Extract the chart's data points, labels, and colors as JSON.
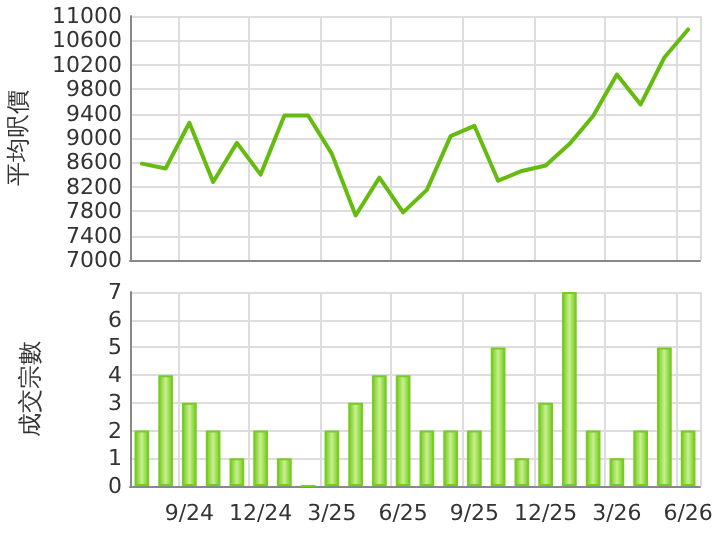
{
  "chart_data": [
    {
      "type": "line",
      "ylabel": "平均呎價",
      "categories": [
        null,
        null,
        null,
        null,
        null,
        null,
        null,
        null,
        null,
        null,
        null,
        null,
        null,
        null,
        null,
        null,
        null,
        null,
        null,
        null,
        null,
        null,
        null,
        null
      ],
      "series": [
        {
          "color": "#66bb11",
          "values": [
            8580,
            8500,
            9250,
            8280,
            8920,
            8400,
            9370,
            9370,
            8740,
            7730,
            8350,
            7780,
            8150,
            9030,
            9200,
            8300,
            8460,
            8550,
            8900,
            9360,
            10040,
            9550,
            10320,
            10780
          ]
        }
      ],
      "ylim": [
        7000,
        11000
      ],
      "yticks": [
        7000,
        7400,
        7800,
        8200,
        8600,
        9000,
        9400,
        9800,
        10200,
        10600,
        11000
      ],
      "grid": true,
      "tick_labels": "y",
      "marker": "none",
      "line_style": "solid"
    },
    {
      "type": "bar",
      "ylabel": "成交宗數",
      "categories": [
        null,
        null,
        "9/24",
        null,
        null,
        "12/24",
        null,
        null,
        "3/25",
        null,
        null,
        "6/25",
        null,
        null,
        "9/25",
        null,
        null,
        "12/25",
        null,
        null,
        "3/26",
        null,
        null,
        "6/26"
      ],
      "series": [
        {
          "color": "#77cc22",
          "values": [
            2,
            4,
            3,
            2,
            1,
            2,
            1,
            0,
            2,
            3,
            4,
            4,
            2,
            2,
            2,
            5,
            1,
            3,
            7,
            2,
            1,
            2,
            5,
            2
          ]
        }
      ],
      "ylim": [
        0,
        7
      ],
      "yticks": [
        0,
        1,
        2,
        3,
        4,
        5,
        6,
        7
      ],
      "grid": true
    }
  ]
}
